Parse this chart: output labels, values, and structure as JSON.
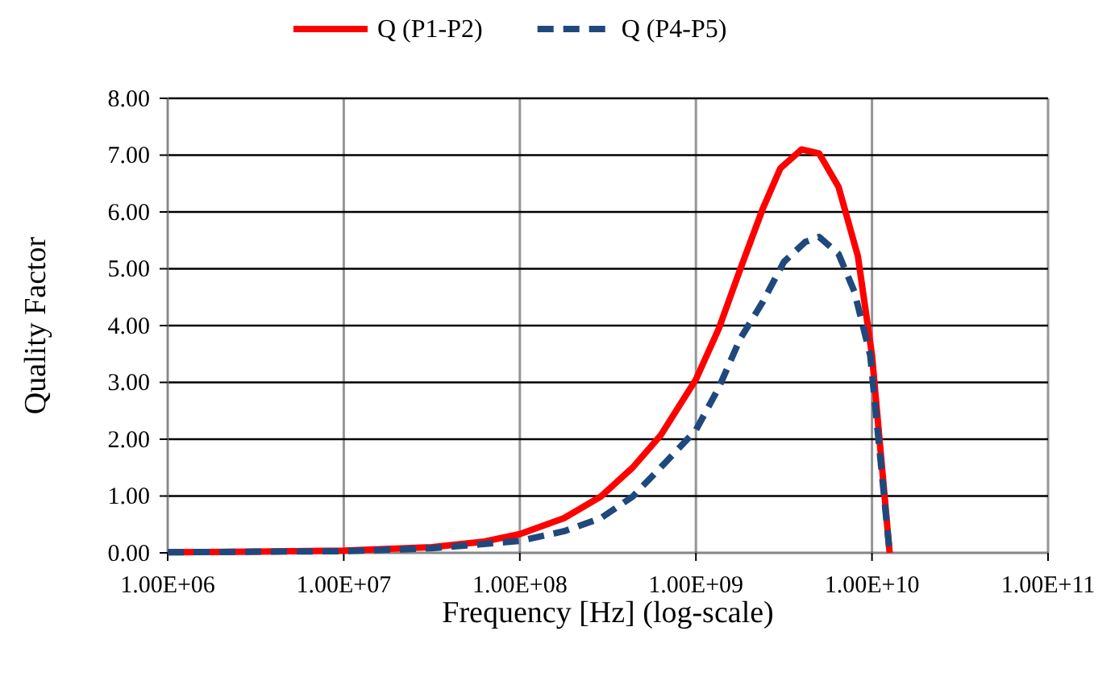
{
  "chart_data": {
    "type": "line",
    "xlabel": "Frequency [Hz] (log-scale)",
    "ylabel": "Quality Factor",
    "log": "x",
    "grid": true,
    "legend": "top",
    "marker": "none",
    "xlim": [
      1000000.0,
      100000000000.0
    ],
    "ylim": [
      0,
      8
    ],
    "xticks": [
      {
        "value": 1000000.0,
        "label": "1.00E+06"
      },
      {
        "value": 10000000.0,
        "label": "1.00E+07"
      },
      {
        "value": 100000000.0,
        "label": "1.00E+08"
      },
      {
        "value": 1000000000.0,
        "label": "1.00E+09"
      },
      {
        "value": 10000000000.0,
        "label": "1.00E+10"
      },
      {
        "value": 100000000000.0,
        "label": "1.00E+11"
      }
    ],
    "yticks": [
      {
        "value": 0,
        "label": "0.00"
      },
      {
        "value": 1,
        "label": "1.00"
      },
      {
        "value": 2,
        "label": "2.00"
      },
      {
        "value": 3,
        "label": "3.00"
      },
      {
        "value": 4,
        "label": "4.00"
      },
      {
        "value": 5,
        "label": "5.00"
      },
      {
        "value": 6,
        "label": "6.00"
      },
      {
        "value": 7,
        "label": "7.00"
      },
      {
        "value": 8,
        "label": "8.00"
      }
    ],
    "series": [
      {
        "name": "Q (P1-P2)",
        "color": "#ff0000",
        "line_style": "solid",
        "x": [
          1000000.0,
          3160000.0,
          10000000.0,
          31600000.0,
          63000000.0,
          100000000.0,
          178000000.0,
          288000000.0,
          437000000.0,
          631000000.0,
          1000000000.0,
          1350000000.0,
          1780000000.0,
          2400000000.0,
          3020000000.0,
          3980000000.0,
          5010000000.0,
          6460000000.0,
          8320000000.0,
          10000000000.0,
          12600000000.0
        ],
        "values": [
          0.01,
          0.02,
          0.04,
          0.1,
          0.2,
          0.33,
          0.61,
          0.99,
          1.5,
          2.07,
          3.05,
          3.95,
          4.98,
          6.06,
          6.77,
          7.1,
          7.03,
          6.44,
          5.22,
          3.48,
          0
        ]
      },
      {
        "name": "Q (P4-P5)",
        "color": "#1f497d",
        "line_style": "dashed",
        "x": [
          1000000.0,
          3160000.0,
          10000000.0,
          31600000.0,
          100000000.0,
          178000000.0,
          288000000.0,
          437000000.0,
          676000000.0,
          1000000000.0,
          1350000000.0,
          1780000000.0,
          2400000000.0,
          3160000000.0,
          4170000000.0,
          5010000000.0,
          6460000000.0,
          7940000000.0,
          9770000000.0,
          12600000000.0
        ],
        "values": [
          0.01,
          0.02,
          0.03,
          0.08,
          0.21,
          0.38,
          0.61,
          0.99,
          1.6,
          2.16,
          2.91,
          3.76,
          4.42,
          5.12,
          5.47,
          5.56,
          5.26,
          4.6,
          3.48,
          0
        ]
      }
    ]
  }
}
